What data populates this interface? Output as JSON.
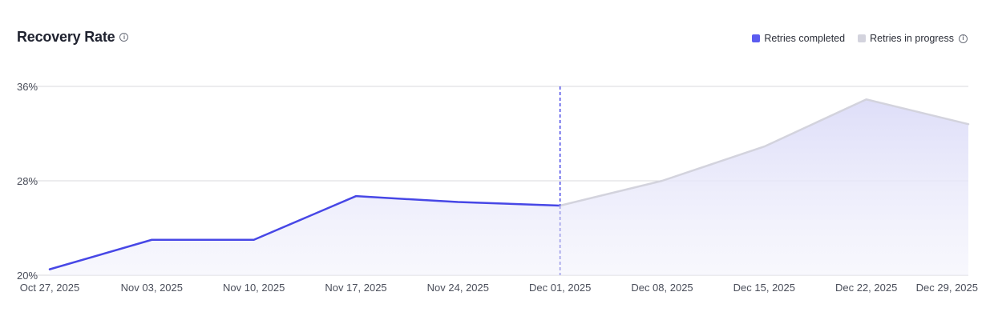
{
  "header": {
    "title": "Recovery Rate",
    "info_icon": "info-icon"
  },
  "legend": {
    "completed_label": "Retries completed",
    "in_progress_label": "Retries in progress"
  },
  "colors": {
    "completed": "#4747e6",
    "completed_swatch": "#5b5cf0",
    "in_progress": "#d3d3dd",
    "area_fill": "#e6e6fa",
    "marker": "#4747e6",
    "grid": "#d9d9de"
  },
  "chart_data": {
    "type": "line",
    "title": "Recovery Rate",
    "xlabel": "",
    "ylabel": "",
    "x_tick_labels": [
      "Oct 27, 2025",
      "Nov 03, 2025",
      "Nov 10, 2025",
      "Nov 17, 2025",
      "Nov 24, 2025",
      "Dec 01, 2025",
      "Dec 08, 2025",
      "Dec 15, 2025",
      "Dec 22, 2025",
      "Dec 29, 2025"
    ],
    "y_tick_labels": [
      "36%",
      "28%",
      "20%"
    ],
    "ylim": [
      20,
      36
    ],
    "y_ticks": [
      20,
      28,
      36
    ],
    "grid": true,
    "legend_position": "top-right",
    "marker_at": "Dec 01, 2025",
    "series": [
      {
        "name": "Retries completed",
        "x": [
          "Oct 27, 2025",
          "Nov 03, 2025",
          "Nov 10, 2025",
          "Nov 17, 2025",
          "Nov 24, 2025",
          "Dec 01, 2025"
        ],
        "values": [
          20.5,
          23.0,
          23.0,
          26.7,
          26.2,
          25.9
        ]
      },
      {
        "name": "Retries in progress",
        "x": [
          "Dec 01, 2025",
          "Dec 08, 2025",
          "Dec 15, 2025",
          "Dec 22, 2025",
          "Dec 29, 2025"
        ],
        "values": [
          25.9,
          28.0,
          30.9,
          34.9,
          32.8
        ]
      }
    ]
  }
}
